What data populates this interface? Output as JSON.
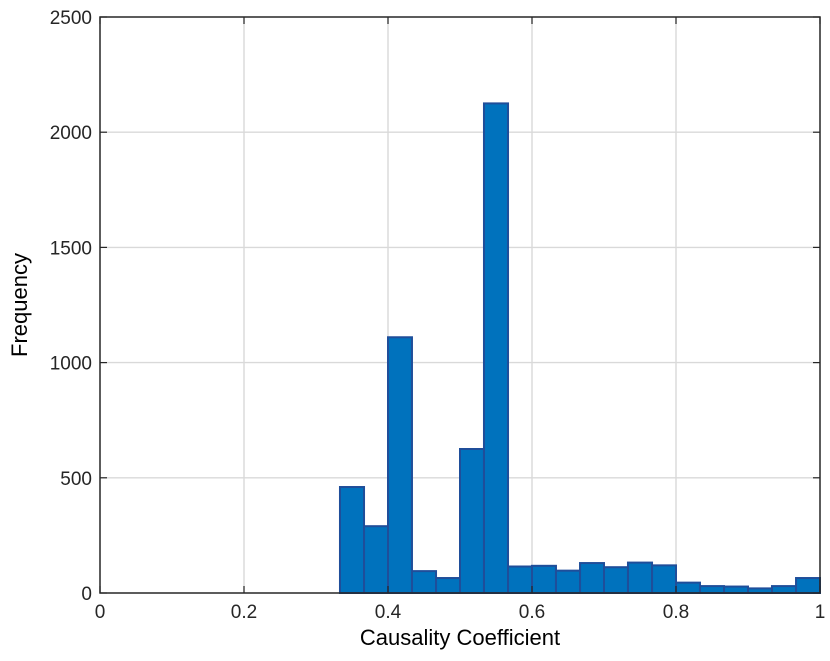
{
  "chart_data": {
    "type": "bar",
    "title": "",
    "xlabel": "Causality Coefficient",
    "ylabel": "Frequency",
    "xlim": [
      0,
      1
    ],
    "ylim": [
      0,
      2500
    ],
    "grid": true,
    "xticks": [
      0,
      0.2,
      0.4,
      0.6,
      0.8,
      1
    ],
    "xtick_labels": [
      "0",
      "0.2",
      "0.4",
      "0.6",
      "0.8",
      "1"
    ],
    "yticks": [
      0,
      500,
      1000,
      1500,
      2000,
      2500
    ],
    "ytick_labels": [
      "0",
      "500",
      "1000",
      "1500",
      "2000",
      "2500"
    ],
    "bin_width": 0.0333,
    "bins": [
      {
        "x0": 0.3333,
        "x1": 0.3667,
        "value": 460
      },
      {
        "x0": 0.3667,
        "x1": 0.4,
        "value": 290
      },
      {
        "x0": 0.4,
        "x1": 0.4333,
        "value": 1110
      },
      {
        "x0": 0.4333,
        "x1": 0.4667,
        "value": 95
      },
      {
        "x0": 0.4667,
        "x1": 0.5,
        "value": 65
      },
      {
        "x0": 0.5,
        "x1": 0.5333,
        "value": 625
      },
      {
        "x0": 0.5333,
        "x1": 0.5667,
        "value": 2125
      },
      {
        "x0": 0.5667,
        "x1": 0.6,
        "value": 115
      },
      {
        "x0": 0.6,
        "x1": 0.6333,
        "value": 118
      },
      {
        "x0": 0.6333,
        "x1": 0.6667,
        "value": 97
      },
      {
        "x0": 0.6667,
        "x1": 0.7,
        "value": 130
      },
      {
        "x0": 0.7,
        "x1": 0.7333,
        "value": 112
      },
      {
        "x0": 0.7333,
        "x1": 0.7667,
        "value": 132
      },
      {
        "x0": 0.7667,
        "x1": 0.8,
        "value": 120
      },
      {
        "x0": 0.8,
        "x1": 0.8333,
        "value": 45
      },
      {
        "x0": 0.8333,
        "x1": 0.8667,
        "value": 30
      },
      {
        "x0": 0.8667,
        "x1": 0.9,
        "value": 28
      },
      {
        "x0": 0.9,
        "x1": 0.9333,
        "value": 20
      },
      {
        "x0": 0.9333,
        "x1": 0.9667,
        "value": 30
      },
      {
        "x0": 0.9667,
        "x1": 1.0,
        "value": 65
      }
    ],
    "bar_color": "#0072bd",
    "bar_edge_color": "#1f4e9a"
  }
}
